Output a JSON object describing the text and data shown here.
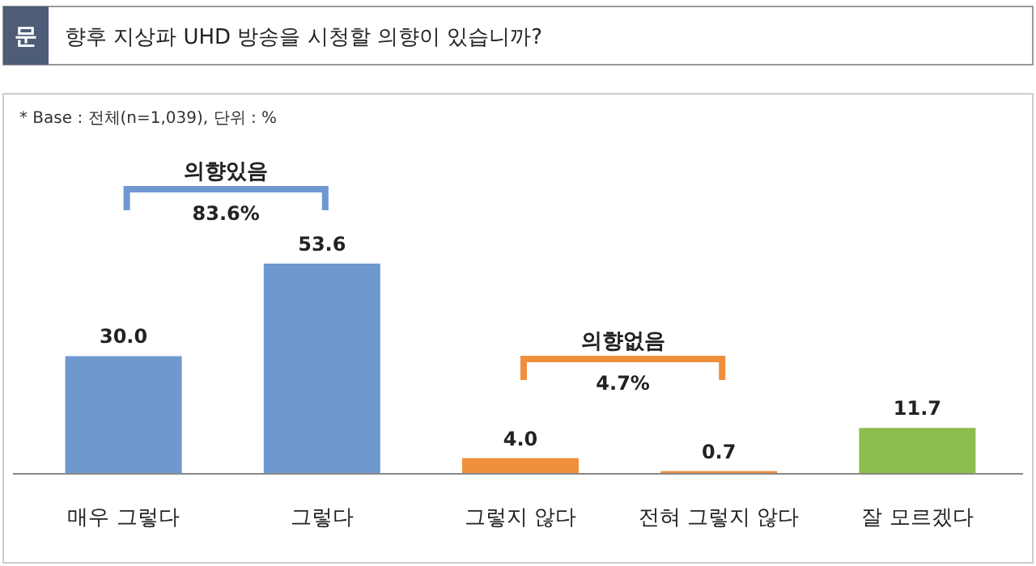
{
  "chart_data": {
    "type": "bar",
    "title": "향후 지상파 UHD 방송을 시청할 의향이 있습니까?",
    "annotations": [
      "문",
      "* Base : 전체(n=1,039), 단위 : %",
      "의향있음",
      "83.6%",
      "의향없음",
      "4.7%"
    ],
    "categories": [
      "매우 그렇다",
      "그렇다",
      "그렇지 않다",
      "전혀 그렇지 않다",
      "잘 모르겠다"
    ],
    "values": [
      30.0,
      53.6,
      4.0,
      0.7,
      11.7
    ],
    "colors": [
      "#6f98cf",
      "#6f98cf",
      "#ef8f3c",
      "#ef8f3c",
      "#8dbd4c"
    ],
    "value_labels": [
      "30.0",
      "53.6",
      "4.0",
      "0.7",
      "11.7"
    ]
  }
}
